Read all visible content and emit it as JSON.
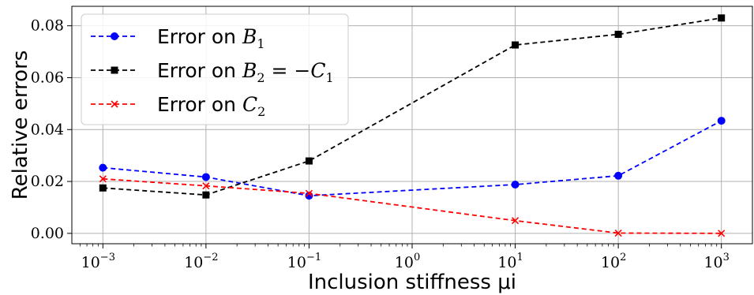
{
  "chart_data": {
    "type": "line",
    "x_scale": "log",
    "xlabel": "Inclusion stiffness μi",
    "ylabel": "Relative errors",
    "xlim": [
      0.0005,
      2000
    ],
    "ylim": [
      -0.004,
      0.0875
    ],
    "grid": true,
    "legend_position": "upper-left",
    "x_ticks": [
      0.001,
      0.01,
      0.1,
      1,
      10,
      100,
      1000
    ],
    "x_tick_labels": [
      {
        "base": "10",
        "exp": "−3"
      },
      {
        "base": "10",
        "exp": "−2"
      },
      {
        "base": "10",
        "exp": "−1"
      },
      {
        "base": "10",
        "exp": "0"
      },
      {
        "base": "10",
        "exp": "1"
      },
      {
        "base": "10",
        "exp": "2"
      },
      {
        "base": "10",
        "exp": "3"
      }
    ],
    "y_ticks": [
      0.0,
      0.02,
      0.04,
      0.06,
      0.08
    ],
    "y_tick_labels": [
      "0.00",
      "0.02",
      "0.04",
      "0.06",
      "0.08"
    ],
    "series": [
      {
        "name": "Error on B1",
        "label_prefix": "Error on ",
        "label_math": "B",
        "label_sub": "1",
        "label_rest": "",
        "color": "#0000ff",
        "marker": "circle",
        "x": [
          0.001,
          0.01,
          0.1,
          10,
          100,
          1000
        ],
        "y": [
          0.0253,
          0.0217,
          0.0145,
          0.0188,
          0.0222,
          0.0434
        ]
      },
      {
        "name": "Error on B2 = −C1",
        "label_prefix": "Error on ",
        "label_math": "B",
        "label_sub": "2",
        "label_rest": " = −C",
        "label_sub2": "1",
        "color": "#000000",
        "marker": "square",
        "x": [
          0.001,
          0.01,
          0.1,
          10,
          100,
          1000
        ],
        "y": [
          0.0175,
          0.0148,
          0.0279,
          0.0726,
          0.0767,
          0.083
        ]
      },
      {
        "name": "Error on C2",
        "label_prefix": "Error on ",
        "label_math": "C",
        "label_sub": "2",
        "label_rest": "",
        "color": "#ff0000",
        "marker": "x",
        "x": [
          0.001,
          0.01,
          0.1,
          10,
          100,
          1000
        ],
        "y": [
          0.021,
          0.0183,
          0.0154,
          0.0049,
          0.0001,
          0.0
        ]
      }
    ]
  }
}
